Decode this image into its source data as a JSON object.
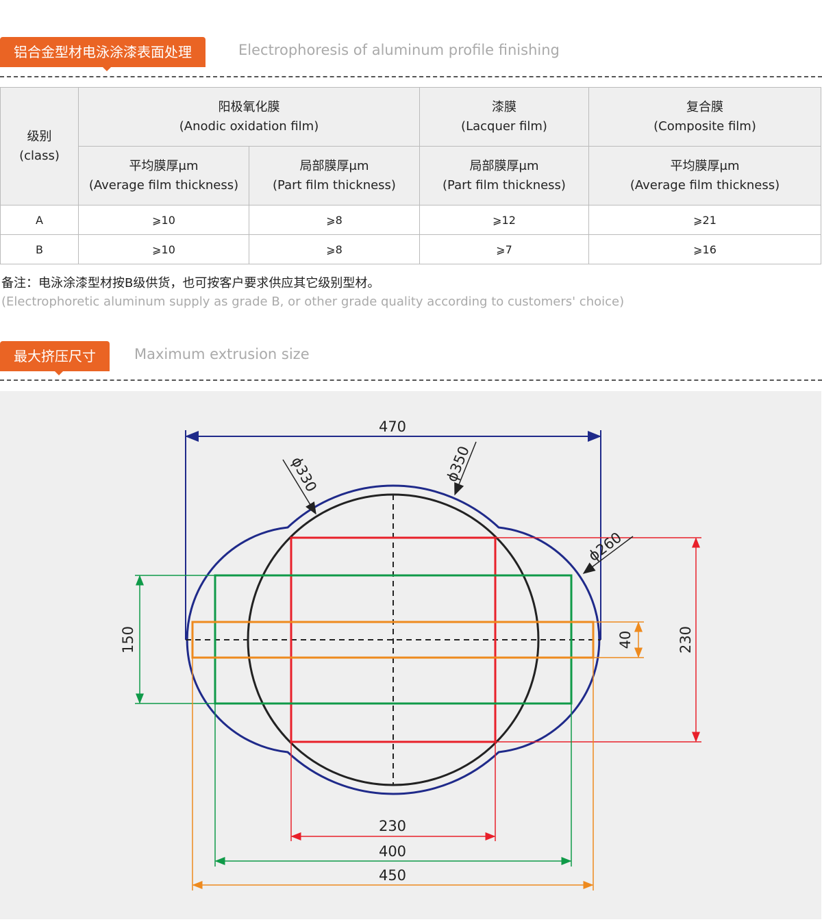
{
  "section1": {
    "title_cn": "铝合金型材电泳涂漆表面处理",
    "title_en": "Electrophoresis of aluminum profile finishing"
  },
  "table": {
    "class_header": {
      "cn": "级别",
      "en": "(class)"
    },
    "groups": [
      {
        "cn": "阳极氧化膜",
        "en": "(Anodic oxidation film)"
      },
      {
        "cn": "漆膜",
        "en": "(Lacquer film)"
      },
      {
        "cn": "复合膜",
        "en": "(Composite film)"
      }
    ],
    "subheaders": [
      {
        "cn": "平均膜厚μm",
        "en": "(Average film thickness)"
      },
      {
        "cn": "局部膜厚μm",
        "en": "(Part film thickness)"
      },
      {
        "cn": "局部膜厚μm",
        "en": "(Part film thickness)"
      },
      {
        "cn": "平均膜厚μm",
        "en": "(Average film thickness)"
      }
    ],
    "rows": [
      [
        "A",
        "⩾10",
        "⩾8",
        "⩾12",
        "⩾21"
      ],
      [
        "B",
        "⩾10",
        "⩾8",
        "⩾7",
        "⩾16"
      ]
    ]
  },
  "note": {
    "cn": "备注：电泳涂漆型材按B级供货，也可按客户要求供应其它级别型材。",
    "en": "(Electrophoretic aluminum supply as grade B, or other grade quality according to customers' choice)"
  },
  "section2": {
    "title_cn": "最大挤压尺寸",
    "title_en": "Maximum extrusion size"
  },
  "diagram": {
    "width_total": "470",
    "d330": "ϕ330",
    "d350": "ϕ350",
    "d260": "ϕ260",
    "h150": "150",
    "h40": "40",
    "h230": "230",
    "w230": "230",
    "w400": "400",
    "w450": "450"
  },
  "colors": {
    "accent": "#ea6424",
    "blue": "#1f2a8a",
    "red": "#e8202a",
    "green": "#0f9a48",
    "orange": "#ee8a1e"
  }
}
